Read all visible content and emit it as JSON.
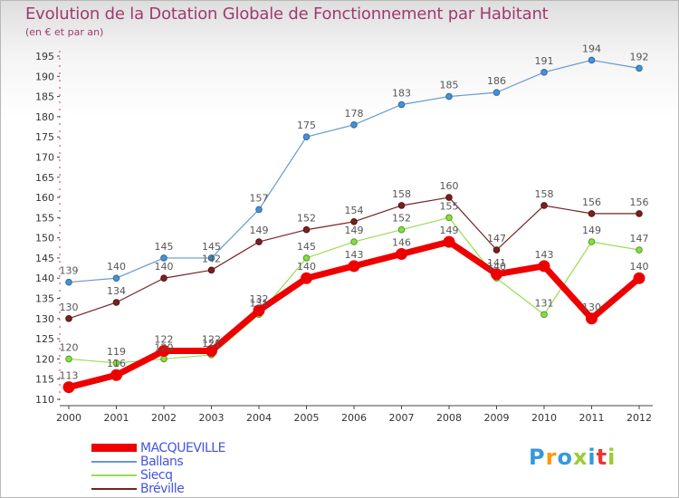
{
  "title": "Evolution de la Dotation Globale de Fonctionnement par Habitant",
  "subtitle": "(en € et par an)",
  "logo_text": "Proxiti",
  "colors": {
    "title": "#a03a6e",
    "legend_text": "#4455dd",
    "MACQUEVILLE": "#ee0000",
    "Ballans": "#6699cc",
    "Siecq": "#99dd55",
    "Bréville": "#772222"
  },
  "chart_data": {
    "type": "line",
    "title": "Evolution de la Dotation Globale de Fonctionnement par Habitant",
    "subtitle": "(en € et par an)",
    "xlabel": "",
    "ylabel": "",
    "ylim": [
      108,
      197
    ],
    "yticks": [
      110,
      115,
      120,
      125,
      130,
      135,
      140,
      145,
      150,
      155,
      160,
      165,
      170,
      175,
      180,
      185,
      190,
      195
    ],
    "categories": [
      "2000",
      "2001",
      "2002",
      "2003",
      "2004",
      "2005",
      "2006",
      "2007",
      "2008",
      "2009",
      "2010",
      "2011",
      "2012"
    ],
    "grid": false,
    "legend_position": "bottom-left",
    "series": [
      {
        "name": "MACQUEVILLE",
        "values": [
          113,
          116,
          122,
          122,
          132,
          140,
          143,
          146,
          149,
          141,
          143,
          130,
          140
        ]
      },
      {
        "name": "Ballans",
        "values": [
          139,
          140,
          145,
          145,
          157,
          175,
          178,
          183,
          185,
          186,
          191,
          194,
          192
        ]
      },
      {
        "name": "Siecq",
        "values": [
          120,
          119,
          120,
          121,
          131,
          145,
          149,
          152,
          155,
          140,
          131,
          149,
          147
        ]
      },
      {
        "name": "Bréville",
        "values": [
          130,
          134,
          140,
          142,
          149,
          152,
          154,
          158,
          160,
          147,
          158,
          156,
          156
        ]
      }
    ]
  }
}
